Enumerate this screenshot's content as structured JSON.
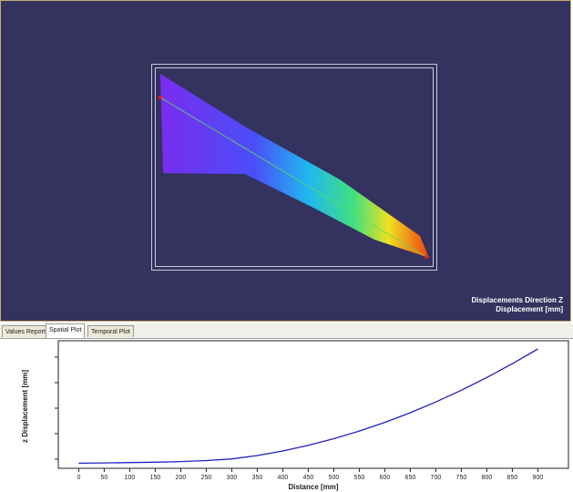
{
  "viewport": {
    "title_line1": "Displacements Direction Z",
    "title_line2": "Displacement [mm]",
    "background": "#34325e"
  },
  "tabs": [
    {
      "label": "Values Report",
      "active": false
    },
    {
      "label": "Spatial Plot",
      "active": true
    },
    {
      "label": "Temporal Plot",
      "active": false
    }
  ],
  "chart_data": {
    "type": "line",
    "xlabel": "Distance [mm]",
    "ylabel": "z Displacement [mm]",
    "xlim": [
      -40,
      960
    ],
    "x_ticks": [
      0,
      50,
      100,
      150,
      200,
      250,
      300,
      350,
      400,
      450,
      500,
      550,
      600,
      650,
      700,
      750,
      800,
      850,
      900
    ],
    "series": [
      {
        "color": "#2020c0",
        "x": [
          0,
          50,
          100,
          150,
          200,
          250,
          300,
          350,
          400,
          450,
          500,
          550,
          600,
          650,
          700,
          750,
          800,
          850,
          900
        ],
        "y": [
          0.0,
          0.3,
          0.6,
          1.0,
          1.6,
          2.6,
          4.2,
          7.5,
          12.0,
          17.5,
          24.0,
          31.5,
          40.0,
          49.5,
          60.0,
          71.5,
          84.0,
          97.5,
          112.0
        ]
      }
    ],
    "grid": false
  }
}
